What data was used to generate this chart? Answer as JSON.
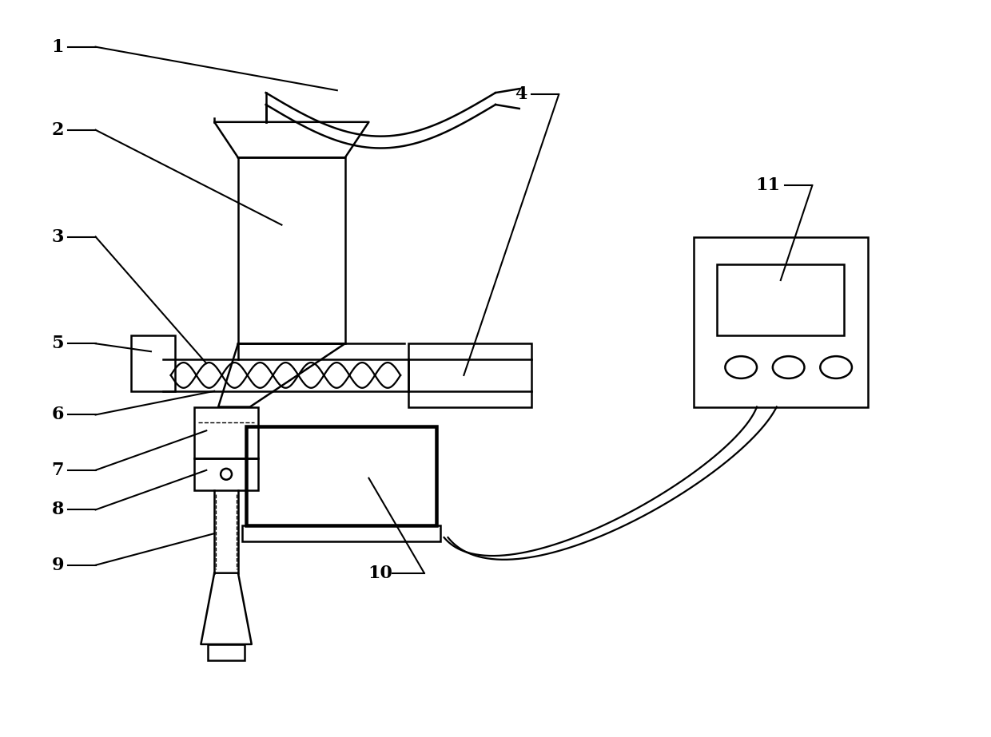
{
  "bg_color": "#ffffff",
  "line_color": "#000000",
  "fig_width": 12.4,
  "fig_height": 9.23
}
